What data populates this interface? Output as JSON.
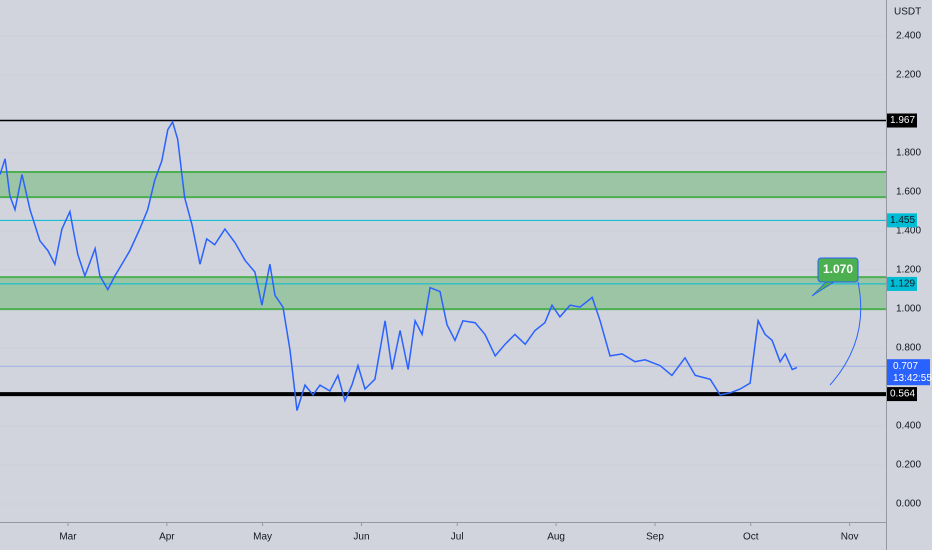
{
  "chart_data": {
    "type": "line",
    "currency": "USDT",
    "x": [
      6.7,
      8.3,
      9.8,
      11.4,
      13.6,
      16.1,
      19.2,
      21.7,
      23.9,
      26.1,
      28.6,
      31.1,
      33.3,
      36.5,
      38.0,
      40.5,
      42.7,
      44.9,
      47.4,
      50.5,
      53.0,
      55.2,
      57.4,
      59.3,
      60.8,
      62.4,
      64.6,
      66.9,
      69.4,
      71.5,
      74.0,
      77.2,
      80.4,
      83.5,
      86.6,
      88.8,
      91.3,
      92.9,
      95.4,
      97.6,
      99.8,
      102.3,
      104.8,
      107.0,
      110.1,
      112.6,
      114.8,
      117.0,
      118.9,
      121.1,
      124.2,
      127.4,
      129.6,
      132.1,
      134.6,
      136.8,
      139.0,
      141.5,
      144.6,
      146.8,
      149.3,
      151.8,
      155.6,
      158.7,
      161.9,
      165.0,
      168.1,
      171.3,
      174.4,
      177.5,
      179.7,
      182.2,
      185.4,
      188.5,
      192.3,
      194.8,
      197.9,
      201.7,
      205.7,
      208.9,
      213.6,
      217.3,
      221.4,
      224.6,
      229.3,
      232.4,
      235.5,
      238.7,
      241.8,
      244.3,
      246.5,
      248.7,
      251.2,
      252.8,
      255.0,
      256.5
    ],
    "values": [
      1.69,
      1.77,
      1.58,
      1.51,
      1.69,
      1.51,
      1.35,
      1.3,
      1.23,
      1.41,
      1.5,
      1.28,
      1.17,
      1.31,
      1.17,
      1.1,
      1.17,
      1.23,
      1.3,
      1.41,
      1.51,
      1.66,
      1.76,
      1.92,
      1.96,
      1.87,
      1.57,
      1.43,
      1.23,
      1.36,
      1.33,
      1.41,
      1.34,
      1.25,
      1.19,
      1.02,
      1.23,
      1.07,
      1.01,
      0.79,
      0.48,
      0.61,
      0.56,
      0.61,
      0.58,
      0.66,
      0.53,
      0.61,
      0.71,
      0.59,
      0.64,
      0.94,
      0.69,
      0.89,
      0.69,
      0.94,
      0.87,
      1.11,
      1.09,
      0.92,
      0.84,
      0.94,
      0.93,
      0.87,
      0.76,
      0.82,
      0.87,
      0.82,
      0.89,
      0.93,
      1.02,
      0.96,
      1.02,
      1.01,
      1.06,
      0.94,
      0.76,
      0.77,
      0.73,
      0.74,
      0.71,
      0.66,
      0.75,
      0.66,
      0.64,
      0.56,
      0.57,
      0.59,
      0.62,
      0.94,
      0.87,
      0.84,
      0.73,
      0.77,
      0.69,
      0.7
    ],
    "color": "#2962ff",
    "xlim": [
      6.7,
      284.4
    ],
    "xticks": [
      {
        "value": 28,
        "label": "Mar"
      },
      {
        "value": 59,
        "label": "Apr"
      },
      {
        "value": 89,
        "label": "May"
      },
      {
        "value": 120,
        "label": "Jun"
      },
      {
        "value": 150,
        "label": "Jul"
      },
      {
        "value": 181,
        "label": "Aug"
      },
      {
        "value": 212,
        "label": "Sep"
      },
      {
        "value": 242,
        "label": "Oct"
      },
      {
        "value": 273,
        "label": "Nov"
      }
    ],
    "ylim": [
      -0.092,
      2.585
    ],
    "yticks": [
      {
        "value": 0,
        "label": "0.000"
      },
      {
        "value": 0.2,
        "label": "0.200"
      },
      {
        "value": 0.4,
        "label": "0.400"
      },
      {
        "value": 0.8,
        "label": "0.800"
      },
      {
        "value": 1.0,
        "label": "1.000"
      },
      {
        "value": 1.2,
        "label": "1.200"
      },
      {
        "value": 1.4,
        "label": "1.400"
      },
      {
        "value": 1.6,
        "label": "1.600"
      },
      {
        "value": 1.8,
        "label": "1.800"
      },
      {
        "value": 2.2,
        "label": "2.200"
      },
      {
        "value": 2.4,
        "label": "2.400"
      }
    ],
    "zones": [
      {
        "from": 1.574,
        "to": 1.703,
        "color": "#4caf50"
      },
      {
        "from": 1.0,
        "to": 1.164,
        "color": "#4caf50"
      }
    ],
    "levels": [
      {
        "value": 1.967,
        "color": "#000000",
        "width": 1.5
      },
      {
        "value": 1.455,
        "color": "#00bcd4",
        "width": 1
      },
      {
        "value": 1.129,
        "color": "#00bcd4",
        "width": 1
      },
      {
        "value": 0.564,
        "color": "#000000",
        "width": 4
      }
    ],
    "last_price": 0.707,
    "countdown": "13:42:55",
    "annotation": {
      "value": 1.07,
      "label": "1.070"
    }
  }
}
